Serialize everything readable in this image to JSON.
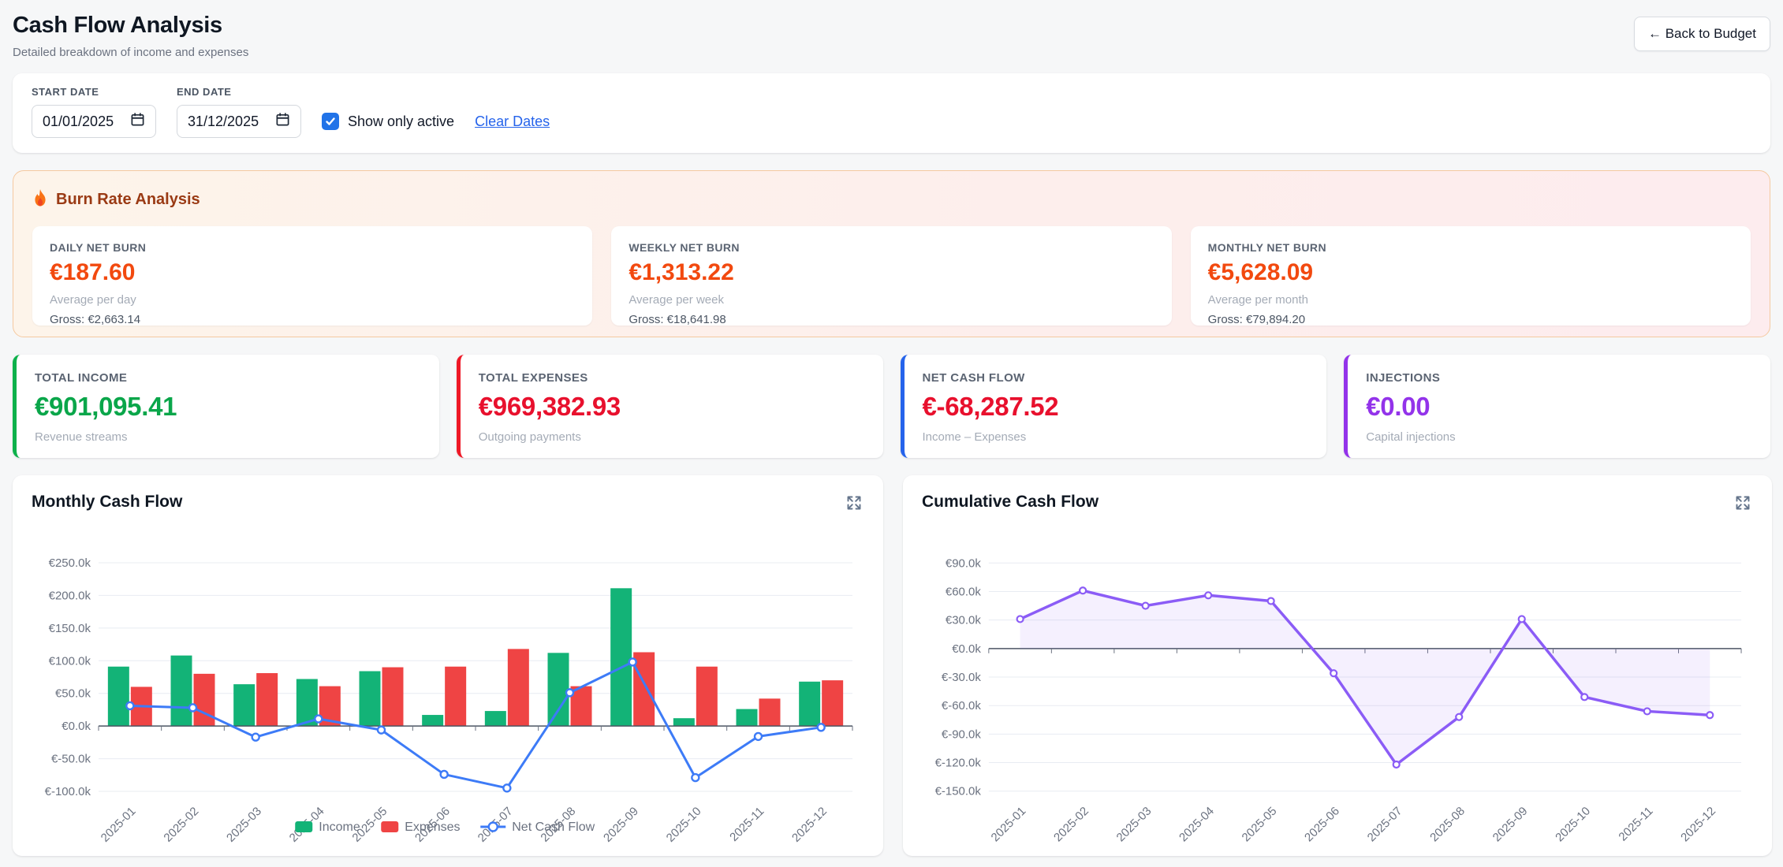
{
  "header": {
    "title": "Cash Flow Analysis",
    "subtitle": "Detailed breakdown of income and expenses",
    "back_button_label": "← Back to Budget"
  },
  "filters": {
    "start_date": {
      "label": "START DATE",
      "value": "01/01/2025"
    },
    "end_date": {
      "label": "END DATE",
      "value": "31/12/2025"
    },
    "show_only_active": {
      "label": "Show only active",
      "checked": true
    },
    "clear_dates_label": "Clear Dates"
  },
  "burn_rate": {
    "title": "Burn Rate Analysis",
    "icon": "flame-icon",
    "title_color": "#9a3a14",
    "value_color": "#f2490f",
    "cards": [
      {
        "label": "DAILY NET BURN",
        "value": "€187.60",
        "sub": "Average per day",
        "gross": "Gross: €2,663.14"
      },
      {
        "label": "WEEKLY NET BURN",
        "value": "€1,313.22",
        "sub": "Average per week",
        "gross": "Gross: €18,641.98"
      },
      {
        "label": "MONTHLY NET BURN",
        "value": "€5,628.09",
        "sub": "Average per month",
        "gross": "Gross: €79,894.20"
      }
    ]
  },
  "summary_cards": [
    {
      "label": "TOTAL INCOME",
      "value": "€901,095.41",
      "sub": "Revenue streams",
      "accent": "#0db14b",
      "value_color": "#0aa64a"
    },
    {
      "label": "TOTAL EXPENSES",
      "value": "€969,382.93",
      "sub": "Outgoing payments",
      "accent": "#ef1826",
      "value_color": "#e8102d"
    },
    {
      "label": "NET CASH FLOW",
      "value": "€-68,287.52",
      "sub": "Income – Expenses",
      "accent": "#2563eb",
      "value_color": "#e8102d"
    },
    {
      "label": "INJECTIONS",
      "value": "€0.00",
      "sub": "Capital injections",
      "accent": "#9333ea",
      "value_color": "#9333ea"
    }
  ],
  "chart_data": [
    {
      "type": "bar",
      "title": "Monthly Cash Flow",
      "categories": [
        "2025-01",
        "2025-02",
        "2025-03",
        "2025-04",
        "2025-05",
        "2025-06",
        "2025-07",
        "2025-08",
        "2025-09",
        "2025-10",
        "2025-11",
        "2025-12"
      ],
      "series": [
        {
          "name": "Income",
          "type": "bar",
          "color": "#13b377",
          "values": [
            91000,
            108000,
            64000,
            72000,
            84000,
            17000,
            23000,
            112000,
            211000,
            12000,
            26000,
            68000
          ]
        },
        {
          "name": "Expenses",
          "type": "bar",
          "color": "#ef4444",
          "values": [
            60000,
            80000,
            81000,
            61000,
            90000,
            91000,
            118000,
            61000,
            113000,
            91000,
            42000,
            70000
          ]
        },
        {
          "name": "Net Cash Flow",
          "type": "line",
          "color": "#3d7bf7",
          "values": [
            31000,
            28000,
            -17000,
            11000,
            -6000,
            -74000,
            -95000,
            51000,
            98000,
            -79000,
            -16000,
            -2000
          ]
        }
      ],
      "ylim": [
        -100000,
        250000
      ],
      "yticks": [
        {
          "value": 250000,
          "label": "€250.0k"
        },
        {
          "value": 200000,
          "label": "€200.0k"
        },
        {
          "value": 150000,
          "label": "€150.0k"
        },
        {
          "value": 100000,
          "label": "€100.0k"
        },
        {
          "value": 50000,
          "label": "€50.0k"
        },
        {
          "value": 0,
          "label": "€0.0k"
        },
        {
          "value": -50000,
          "label": "€-50.0k"
        },
        {
          "value": -100000,
          "label": "€-100.0k"
        }
      ],
      "grid": true,
      "x_label_rotation": -45,
      "legend_position": "bottom-center"
    },
    {
      "type": "area",
      "title": "Cumulative Cash Flow",
      "categories": [
        "2025-01",
        "2025-02",
        "2025-03",
        "2025-04",
        "2025-05",
        "2025-06",
        "2025-07",
        "2025-08",
        "2025-09",
        "2025-10",
        "2025-11",
        "2025-12"
      ],
      "series": [
        {
          "name": "Cumulative Cash Flow",
          "type": "area",
          "color": "#8b5cf6",
          "fill": "rgba(139,92,246,0.09)",
          "values": [
            31000,
            61000,
            45000,
            56000,
            50000,
            -26000,
            -122000,
            -72000,
            31000,
            -51000,
            -66000,
            -70000
          ]
        }
      ],
      "ylim": [
        -150000,
        90000
      ],
      "yticks": [
        {
          "value": 90000,
          "label": "€90.0k"
        },
        {
          "value": 60000,
          "label": "€60.0k"
        },
        {
          "value": 30000,
          "label": "€30.0k"
        },
        {
          "value": 0,
          "label": "€0.0k"
        },
        {
          "value": -30000,
          "label": "€-30.0k"
        },
        {
          "value": -60000,
          "label": "€-60.0k"
        },
        {
          "value": -90000,
          "label": "€-90.0k"
        },
        {
          "value": -120000,
          "label": "€-120.0k"
        },
        {
          "value": -150000,
          "label": "€-150.0k"
        }
      ],
      "grid": true,
      "x_label_rotation": -45,
      "legend_position": "none"
    }
  ],
  "icons": {
    "flame": "flame-icon",
    "calendar": "calendar-icon",
    "check": "check-icon",
    "expand": "expand-icon"
  }
}
